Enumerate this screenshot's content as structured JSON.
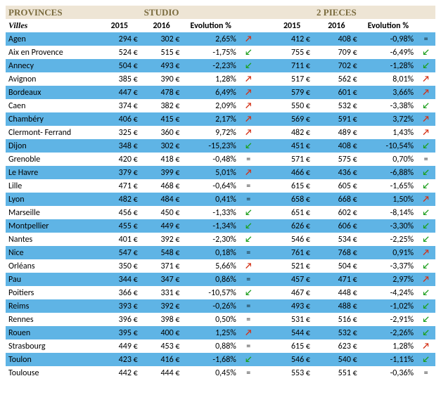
{
  "type": "table",
  "colors": {
    "header_bg": "#eee5d5",
    "header_text": "#7a6b3e",
    "row_blue": "#5fb4e5",
    "row_white": "#ffffff",
    "arrow_up": "#d33015",
    "arrow_down": "#1a9e1a",
    "arrow_eq": "#000000"
  },
  "header": {
    "provinces": "PROVINCES",
    "studio": "STUDIO",
    "pieces2": "2 PIECES",
    "villes": "Villes",
    "y2015": "2015",
    "y2016": "2016",
    "evolution": "Evolution %"
  },
  "glyphs": {
    "up": "↗",
    "down": "↙",
    "eq": "="
  },
  "rows": [
    {
      "city": "Agen",
      "s2015": "294 €",
      "s2016": "302 €",
      "sevo": "2,65%",
      "strend": "up",
      "p2015": "412 €",
      "p2016": "408 €",
      "pevo": "-0,98%",
      "ptrend": "eq"
    },
    {
      "city": "Aix en Provence",
      "s2015": "524 €",
      "s2016": "515 €",
      "sevo": "-1,75%",
      "strend": "down",
      "p2015": "755 €",
      "p2016": "709 €",
      "pevo": "-6,49%",
      "ptrend": "down"
    },
    {
      "city": "Annecy",
      "s2015": "504 €",
      "s2016": "493 €",
      "sevo": "-2,23%",
      "strend": "down",
      "p2015": "711 €",
      "p2016": "702 €",
      "pevo": "-1,28%",
      "ptrend": "down"
    },
    {
      "city": "Avignon",
      "s2015": "385 €",
      "s2016": "390 €",
      "sevo": "1,28%",
      "strend": "up",
      "p2015": "517 €",
      "p2016": "562 €",
      "pevo": "8,01%",
      "ptrend": "up"
    },
    {
      "city": "Bordeaux",
      "s2015": "447 €",
      "s2016": "478 €",
      "sevo": "6,49%",
      "strend": "up",
      "p2015": "579 €",
      "p2016": "601 €",
      "pevo": "3,66%",
      "ptrend": "up"
    },
    {
      "city": "Caen",
      "s2015": "374 €",
      "s2016": "382 €",
      "sevo": "2,09%",
      "strend": "up",
      "p2015": "550 €",
      "p2016": "532 €",
      "pevo": "-3,38%",
      "ptrend": "down"
    },
    {
      "city": "Chambéry",
      "s2015": "406 €",
      "s2016": "415 €",
      "sevo": "2,17%",
      "strend": "up",
      "p2015": "569 €",
      "p2016": "591 €",
      "pevo": "3,72%",
      "ptrend": "up"
    },
    {
      "city": "Clermont- Ferrand",
      "s2015": "325 €",
      "s2016": "360 €",
      "sevo": "9,72%",
      "strend": "up",
      "p2015": "482 €",
      "p2016": "489 €",
      "pevo": "1,43%",
      "ptrend": "up"
    },
    {
      "city": "Dijon",
      "s2015": "348 €",
      "s2016": "302 €",
      "sevo": "-15,23%",
      "strend": "down",
      "p2015": "451 €",
      "p2016": "408 €",
      "pevo": "-10,54%",
      "ptrend": "down"
    },
    {
      "city": "Grenoble",
      "s2015": "420 €",
      "s2016": "418 €",
      "sevo": "-0,48%",
      "strend": "eq",
      "p2015": "571 €",
      "p2016": "575 €",
      "pevo": "0,70%",
      "ptrend": "eq"
    },
    {
      "city": "Le Havre",
      "s2015": "379 €",
      "s2016": "399 €",
      "sevo": "5,01%",
      "strend": "up",
      "p2015": "466 €",
      "p2016": "436 €",
      "pevo": "-6,88%",
      "ptrend": "down"
    },
    {
      "city": "Lille",
      "s2015": "471 €",
      "s2016": "468 €",
      "sevo": "-0,64%",
      "strend": "eq",
      "p2015": "615 €",
      "p2016": "605 €",
      "pevo": "-1,65%",
      "ptrend": "down"
    },
    {
      "city": "Lyon",
      "s2015": "482 €",
      "s2016": "484 €",
      "sevo": "0,41%",
      "strend": "eq",
      "p2015": "658 €",
      "p2016": "668 €",
      "pevo": "1,50%",
      "ptrend": "up"
    },
    {
      "city": "Marseille",
      "s2015": "456 €",
      "s2016": "450 €",
      "sevo": "-1,33%",
      "strend": "down",
      "p2015": "651 €",
      "p2016": "602 €",
      "pevo": "-8,14%",
      "ptrend": "down"
    },
    {
      "city": "Montpellier",
      "s2015": "455 €",
      "s2016": "449 €",
      "sevo": "-1,34%",
      "strend": "down",
      "p2015": "626 €",
      "p2016": "606 €",
      "pevo": "-3,30%",
      "ptrend": "down"
    },
    {
      "city": "Nantes",
      "s2015": "401 €",
      "s2016": "392 €",
      "sevo": "-2,30%",
      "strend": "down",
      "p2015": "546 €",
      "p2016": "534 €",
      "pevo": "-2,25%",
      "ptrend": "down"
    },
    {
      "city": "Nice",
      "s2015": "547 €",
      "s2016": "548 €",
      "sevo": "0,18%",
      "strend": "eq",
      "p2015": "761 €",
      "p2016": "768 €",
      "pevo": "0,91%",
      "ptrend": "up"
    },
    {
      "city": "Orléans",
      "s2015": "350 €",
      "s2016": "371 €",
      "sevo": "5,66%",
      "strend": "up",
      "p2015": "521 €",
      "p2016": "504 €",
      "pevo": "-3,37%",
      "ptrend": "down"
    },
    {
      "city": "Pau",
      "s2015": "344 €",
      "s2016": "347 €",
      "sevo": "0,86%",
      "strend": "eq",
      "p2015": "457 €",
      "p2016": "471 €",
      "pevo": "2,97%",
      "ptrend": "up"
    },
    {
      "city": "Poitiers",
      "s2015": "366 €",
      "s2016": "331 €",
      "sevo": "-10,57%",
      "strend": "down",
      "p2015": "467 €",
      "p2016": "448 €",
      "pevo": "-4,24%",
      "ptrend": "down"
    },
    {
      "city": "Reims",
      "s2015": "393 €",
      "s2016": "392 €",
      "sevo": "-0,26%",
      "strend": "eq",
      "p2015": "493 €",
      "p2016": "488 €",
      "pevo": "-1,02%",
      "ptrend": "down"
    },
    {
      "city": "Rennes",
      "s2015": "396 €",
      "s2016": "398 €",
      "sevo": "0,50%",
      "strend": "eq",
      "p2015": "531 €",
      "p2016": "516 €",
      "pevo": "-2,91%",
      "ptrend": "down"
    },
    {
      "city": "Rouen",
      "s2015": "395 €",
      "s2016": "400 €",
      "sevo": "1,25%",
      "strend": "up",
      "p2015": "544 €",
      "p2016": "532 €",
      "pevo": "-2,26%",
      "ptrend": "down"
    },
    {
      "city": "Strasbourg",
      "s2015": "449 €",
      "s2016": "453 €",
      "sevo": "0,88%",
      "strend": "eq",
      "p2015": "615 €",
      "p2016": "623 €",
      "pevo": "1,28%",
      "ptrend": "up"
    },
    {
      "city": "Toulon",
      "s2015": "423 €",
      "s2016": "416 €",
      "sevo": "-1,68%",
      "strend": "down",
      "p2015": "546 €",
      "p2016": "540 €",
      "pevo": "-1,11%",
      "ptrend": "down"
    },
    {
      "city": "Toulouse",
      "s2015": "442 €",
      "s2016": "444 €",
      "sevo": "0,45%",
      "strend": "eq",
      "p2015": "553 €",
      "p2016": "551 €",
      "pevo": "-0,36%",
      "ptrend": "eq"
    }
  ],
  "row_striping": [
    "blue",
    "white",
    "blue",
    "white",
    "blue",
    "white",
    "blue",
    "white",
    "blue",
    "white",
    "blue",
    "white",
    "blue",
    "white",
    "blue",
    "white",
    "blue",
    "white",
    "blue",
    "white",
    "blue",
    "white",
    "blue",
    "white",
    "blue",
    "white"
  ]
}
